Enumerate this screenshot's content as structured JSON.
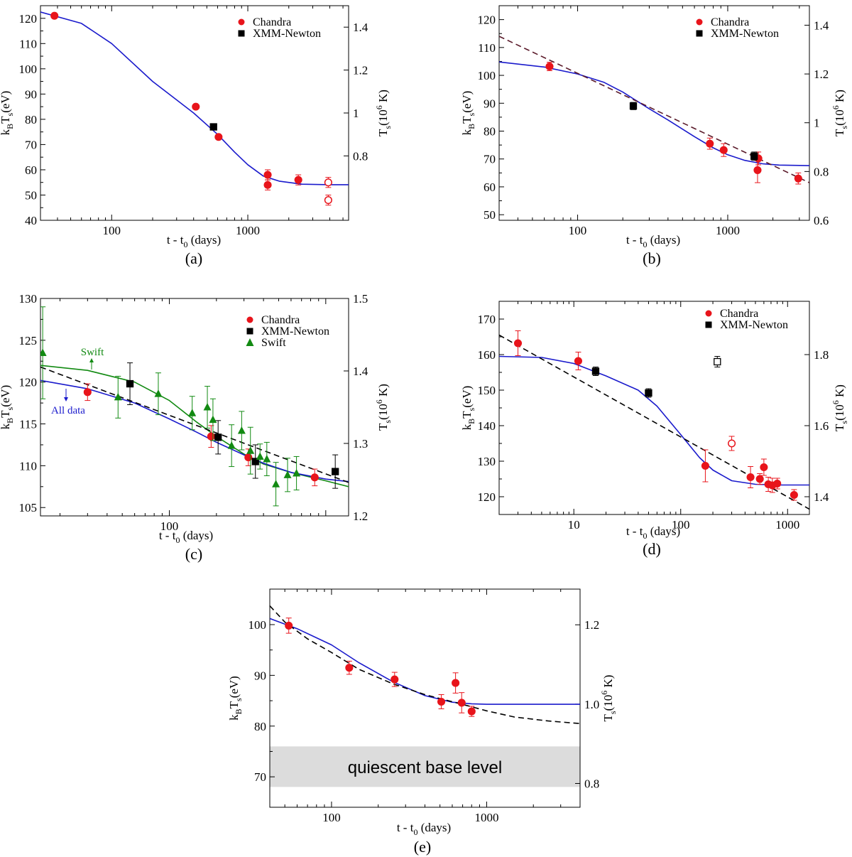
{
  "colors": {
    "chandra": "#e8141b",
    "xmm": "#000000",
    "swift": "#128a12",
    "model": "#1a1acc",
    "dashed": "#000000",
    "dashed_b": "#5a1a2a",
    "band": "#dcdcdc"
  },
  "chart_data": [
    {
      "id": "a",
      "type": "scatter",
      "caption": "(a)",
      "xscale": "log",
      "xlim": [
        30,
        5500
      ],
      "ylim": [
        40,
        125
      ],
      "y2lim": [
        0.5,
        1.5
      ],
      "yticks": [
        40,
        50,
        60,
        70,
        80,
        90,
        100,
        110,
        120
      ],
      "xticks": [
        {
          "v": 100,
          "label": "100"
        },
        {
          "v": 1000,
          "label": "1000"
        }
      ],
      "y2ticks": [
        {
          "v": 0.8,
          "label": "0.8"
        },
        {
          "v": 1.0,
          "label": "1"
        },
        {
          "v": 1.2,
          "label": "1.2"
        },
        {
          "v": 1.4,
          "label": "1.4"
        }
      ],
      "legend": [
        {
          "name": "Chandra",
          "marker": "circle",
          "color": "#e8141b"
        },
        {
          "name": "XMM-Newton",
          "marker": "square",
          "color": "#000000"
        }
      ],
      "curves": [
        {
          "name": "model",
          "style": "solid",
          "color": "#1a1acc",
          "x": [
            30,
            60,
            100,
            200,
            400,
            600,
            800,
            1000,
            1300,
            1700,
            2500,
            4000,
            5500
          ],
          "y": [
            122.5,
            118,
            110,
            95,
            82.5,
            74,
            67,
            62,
            57.5,
            55.5,
            54.3,
            54.1,
            54.1
          ]
        }
      ],
      "series": [
        {
          "name": "Chandra",
          "marker": "circle",
          "color": "#e8141b",
          "points": [
            {
              "x": 38,
              "y": 121,
              "err": 0.5
            },
            {
              "x": 415,
              "y": 85,
              "err": 0.5
            },
            {
              "x": 610,
              "y": 73,
              "err": 0.8
            },
            {
              "x": 1400,
              "y": 58,
              "err": 2
            },
            {
              "x": 1400,
              "y": 54,
              "err": 2
            },
            {
              "x": 2350,
              "y": 56,
              "err": 2
            },
            {
              "x": 3900,
              "y": 55,
              "err": 2,
              "open": true
            },
            {
              "x": 3900,
              "y": 48,
              "err": 2,
              "open": true
            }
          ]
        },
        {
          "name": "XMM-Newton",
          "marker": "square",
          "color": "#000000",
          "points": [
            {
              "x": 560,
              "y": 77,
              "err": 0.8
            }
          ]
        }
      ]
    },
    {
      "id": "b",
      "type": "scatter",
      "caption": "(b)",
      "xscale": "log",
      "xlim": [
        30,
        3500
      ],
      "ylim": [
        48,
        125
      ],
      "y2lim": [
        0.6,
        1.48
      ],
      "yticks": [
        50,
        60,
        70,
        80,
        90,
        100,
        110,
        120
      ],
      "xticks": [
        {
          "v": 100,
          "label": "100"
        },
        {
          "v": 1000,
          "label": "1000"
        }
      ],
      "y2ticks": [
        {
          "v": 0.6,
          "label": "0.6"
        },
        {
          "v": 0.8,
          "label": "0.8"
        },
        {
          "v": 1.0,
          "label": "1"
        },
        {
          "v": 1.2,
          "label": "1.2"
        },
        {
          "v": 1.4,
          "label": "1.4"
        }
      ],
      "legend": [
        {
          "name": "Chandra",
          "marker": "circle",
          "color": "#e8141b"
        },
        {
          "name": "XMM-Newton",
          "marker": "square",
          "color": "#000000"
        }
      ],
      "curves": [
        {
          "name": "model",
          "style": "solid",
          "color": "#1a1acc",
          "x": [
            30,
            60,
            100,
            150,
            200,
            300,
            400,
            600,
            800,
            1000,
            1300,
            1700,
            2200,
            3500
          ],
          "y": [
            104.8,
            103,
            100.5,
            97.5,
            94,
            88,
            84,
            78,
            74,
            71.5,
            69.5,
            68.3,
            67.8,
            67.6
          ]
        },
        {
          "name": "power-law",
          "style": "dashed",
          "color": "#5a1a2a",
          "x": [
            30,
            3500
          ],
          "y": [
            114,
            61.5
          ]
        }
      ],
      "series": [
        {
          "name": "Chandra",
          "marker": "circle",
          "color": "#e8141b",
          "points": [
            {
              "x": 65,
              "y": 103.2,
              "err": 1.5
            },
            {
              "x": 760,
              "y": 75.5,
              "err": 2
            },
            {
              "x": 940,
              "y": 73.2,
              "err": 2.3
            },
            {
              "x": 1600,
              "y": 70.2,
              "err": 2.3
            },
            {
              "x": 1580,
              "y": 66,
              "err": 4.5
            },
            {
              "x": 2950,
              "y": 63,
              "err": 2
            }
          ]
        },
        {
          "name": "XMM-Newton",
          "marker": "square",
          "color": "#000000",
          "points": [
            {
              "x": 235,
              "y": 89,
              "err": 1.3
            },
            {
              "x": 1500,
              "y": 71,
              "err": 1.5
            }
          ]
        }
      ]
    },
    {
      "id": "c",
      "type": "scatter",
      "caption": "(c)",
      "xscale": "log",
      "xlim": [
        15,
        1400
      ],
      "ylim": [
        104,
        130
      ],
      "y2lim": [
        1.2,
        1.5
      ],
      "yticks": [
        105,
        110,
        115,
        120,
        125,
        130
      ],
      "xticks": [
        {
          "v": 100,
          "label": "100"
        }
      ],
      "y2ticks": [
        {
          "v": 1.2,
          "label": "1.2"
        },
        {
          "v": 1.3,
          "label": "1.3"
        },
        {
          "v": 1.4,
          "label": "1.4"
        },
        {
          "v": 1.5,
          "label": "1.5"
        }
      ],
      "legend": [
        {
          "name": "Chandra",
          "marker": "circle",
          "color": "#e8141b"
        },
        {
          "name": "XMM-Newton",
          "marker": "square",
          "color": "#000000"
        },
        {
          "name": "Swift",
          "marker": "triangle",
          "color": "#128a12"
        }
      ],
      "annotations": [
        {
          "text": "Swift",
          "color": "#128a12",
          "arrow": "up"
        },
        {
          "text": "All data",
          "color": "#1a1acc",
          "arrow": "down"
        }
      ],
      "curves": [
        {
          "name": "model-swift",
          "style": "solid",
          "color": "#128a12",
          "x": [
            15,
            30,
            60,
            100,
            150,
            200,
            300,
            400,
            600,
            1000,
            1400
          ],
          "y": [
            122,
            121.4,
            120,
            117.8,
            115.2,
            113.5,
            111.4,
            110.2,
            109.2,
            108.2,
            107.5
          ]
        },
        {
          "name": "model-all",
          "style": "solid",
          "color": "#1a1acc",
          "x": [
            15,
            30,
            60,
            100,
            150,
            200,
            300,
            400,
            600,
            1000,
            1400
          ],
          "y": [
            120.2,
            119.2,
            117.5,
            115.6,
            114,
            112.8,
            111.3,
            110.3,
            109.2,
            108.4,
            108.1
          ]
        },
        {
          "name": "power-law",
          "style": "dashed",
          "color": "#000000",
          "x": [
            15,
            1400
          ],
          "y": [
            121.8,
            108
          ]
        }
      ],
      "series": [
        {
          "name": "Chandra",
          "marker": "circle",
          "color": "#e8141b",
          "points": [
            {
              "x": 30,
              "y": 118.8,
              "err": 1
            },
            {
              "x": 185,
              "y": 113.5,
              "err": 1.3
            },
            {
              "x": 320,
              "y": 111,
              "err": 1
            },
            {
              "x": 850,
              "y": 108.6,
              "err": 1
            }
          ]
        },
        {
          "name": "XMM-Newton",
          "marker": "square",
          "color": "#000000",
          "points": [
            {
              "x": 56,
              "y": 119.8,
              "err": 2.5
            },
            {
              "x": 205,
              "y": 113.4,
              "err": 2
            },
            {
              "x": 355,
              "y": 110.5,
              "err": 2
            },
            {
              "x": 1150,
              "y": 109.3,
              "err": 2
            }
          ]
        },
        {
          "name": "Swift",
          "marker": "triangle",
          "color": "#128a12",
          "points": [
            {
              "x": 15.5,
              "y": 123.5,
              "err": 5.5
            },
            {
              "x": 47,
              "y": 118.2,
              "err": 2.5
            },
            {
              "x": 85,
              "y": 118.6,
              "err": 2.5
            },
            {
              "x": 140,
              "y": 116.3,
              "err": 2
            },
            {
              "x": 175,
              "y": 117,
              "err": 2.5
            },
            {
              "x": 190,
              "y": 115.5,
              "err": 2.5
            },
            {
              "x": 250,
              "y": 112.4,
              "err": 2.5
            },
            {
              "x": 290,
              "y": 114.2,
              "err": 2.3
            },
            {
              "x": 330,
              "y": 111.8,
              "err": 2.8
            },
            {
              "x": 380,
              "y": 111.1,
              "err": 1.5
            },
            {
              "x": 420,
              "y": 110.8,
              "err": 2
            },
            {
              "x": 480,
              "y": 107.8,
              "err": 2.6
            },
            {
              "x": 570,
              "y": 108.9,
              "err": 2
            },
            {
              "x": 650,
              "y": 109.1,
              "err": 2
            }
          ]
        }
      ]
    },
    {
      "id": "d",
      "type": "scatter",
      "caption": "(d)",
      "xscale": "log",
      "xlim": [
        2,
        1600
      ],
      "ylim": [
        115,
        175
      ],
      "y2lim": [
        1.35,
        1.95
      ],
      "yticks": [
        120,
        130,
        140,
        150,
        160,
        170
      ],
      "xticks": [
        {
          "v": 10,
          "label": "10"
        },
        {
          "v": 100,
          "label": "100"
        },
        {
          "v": 1000,
          "label": "1000"
        }
      ],
      "y2ticks": [
        {
          "v": 1.4,
          "label": "1.4"
        },
        {
          "v": 1.6,
          "label": "1.6"
        },
        {
          "v": 1.8,
          "label": "1.8"
        }
      ],
      "legend": [
        {
          "name": "Chandra",
          "marker": "circle",
          "color": "#e8141b"
        },
        {
          "name": "XMM-Newton",
          "marker": "square",
          "color": "#000000"
        }
      ],
      "curves": [
        {
          "name": "model",
          "style": "solid",
          "color": "#1a1acc",
          "x": [
            2,
            5,
            10,
            20,
            40,
            60,
            100,
            150,
            200,
            300,
            500,
            800,
            1200,
            1600
          ],
          "y": [
            159.5,
            159.2,
            157.5,
            154,
            150,
            145.5,
            137.5,
            131,
            127.5,
            124.5,
            123.5,
            123.3,
            123.3,
            123.3
          ]
        },
        {
          "name": "power-law",
          "style": "dashed",
          "color": "#000000",
          "x": [
            2,
            1600
          ],
          "y": [
            165.5,
            116.5
          ]
        }
      ],
      "series": [
        {
          "name": "Chandra",
          "marker": "circle",
          "color": "#e8141b",
          "points": [
            {
              "x": 3,
              "y": 163.2,
              "err": 3.5
            },
            {
              "x": 11,
              "y": 158.2,
              "err": 2.5
            },
            {
              "x": 170,
              "y": 128.7,
              "err": 4.5
            },
            {
              "x": 300,
              "y": 135,
              "err": 2,
              "open": true
            },
            {
              "x": 450,
              "y": 125.5,
              "err": 3
            },
            {
              "x": 550,
              "y": 125,
              "err": 1.5
            },
            {
              "x": 600,
              "y": 128.3,
              "err": 2.3
            },
            {
              "x": 660,
              "y": 123.5,
              "err": 2
            },
            {
              "x": 720,
              "y": 123.2,
              "err": 2
            },
            {
              "x": 800,
              "y": 123.7,
              "err": 1.5
            },
            {
              "x": 1150,
              "y": 120.5,
              "err": 1.5
            }
          ]
        },
        {
          "name": "XMM-Newton",
          "marker": "square",
          "color": "#000000",
          "points": [
            {
              "x": 16,
              "y": 155.3,
              "err": 1.2
            },
            {
              "x": 50,
              "y": 149.2,
              "err": 1.2
            },
            {
              "x": 220,
              "y": 158,
              "err": 1.5,
              "open": true
            }
          ]
        }
      ]
    },
    {
      "id": "e",
      "type": "scatter",
      "caption": "(e)",
      "xscale": "log",
      "xlim": [
        40,
        4000
      ],
      "ylim": [
        64,
        107
      ],
      "y2lim": [
        0.74,
        1.29
      ],
      "yticks": [
        70,
        80,
        90,
        100
      ],
      "xticks": [
        {
          "v": 100,
          "label": "100"
        },
        {
          "v": 1000,
          "label": "1000"
        }
      ],
      "y2ticks": [
        {
          "v": 0.8,
          "label": "0.8"
        },
        {
          "v": 1.0,
          "label": "1.0"
        },
        {
          "v": 1.2,
          "label": "1.2"
        }
      ],
      "band": {
        "y0": 68,
        "y1": 76,
        "label": "quiescent base level"
      },
      "curves": [
        {
          "name": "model",
          "style": "solid",
          "color": "#1a1acc",
          "x": [
            40,
            60,
            100,
            150,
            250,
            400,
            600,
            800,
            1000,
            2000,
            4000
          ],
          "y": [
            101.2,
            99.2,
            96,
            92.5,
            88.7,
            86,
            84.7,
            84.4,
            84.3,
            84.3,
            84.3
          ]
        },
        {
          "name": "power-law",
          "style": "dashed",
          "color": "#000000",
          "x": [
            40,
            50,
            70,
            100,
            150,
            250,
            400,
            600,
            800,
            1000,
            1500,
            2500,
            4000
          ],
          "y": [
            103.7,
            100.5,
            97.2,
            94.5,
            91.2,
            88.3,
            86.2,
            84.8,
            83.8,
            83,
            81.8,
            81,
            80.5
          ]
        }
      ],
      "series": [
        {
          "name": "Chandra",
          "marker": "circle",
          "color": "#e8141b",
          "points": [
            {
              "x": 53,
              "y": 99.8,
              "err": 1.5
            },
            {
              "x": 130,
              "y": 91.5,
              "err": 1.3
            },
            {
              "x": 255,
              "y": 89.2,
              "err": 1.4
            },
            {
              "x": 510,
              "y": 84.8,
              "err": 1.4
            },
            {
              "x": 630,
              "y": 88.5,
              "err": 2
            },
            {
              "x": 690,
              "y": 84.6,
              "err": 2
            },
            {
              "x": 800,
              "y": 82.9,
              "err": 1
            }
          ]
        }
      ]
    }
  ],
  "labels": {
    "xlabel": "t - t",
    "xlabel_sub": "0",
    "xlabel_unit": " (days)",
    "ylabel_k": "k",
    "ylabel_b": "B",
    "ylabel_t": "T",
    "ylabel_s": "s",
    "ylabel_unit": "(eV)",
    "y2label_t": "T",
    "y2label_s": "s",
    "y2label_unit": "(10",
    "y2label_exp": "6",
    "y2label_k": " K)"
  }
}
